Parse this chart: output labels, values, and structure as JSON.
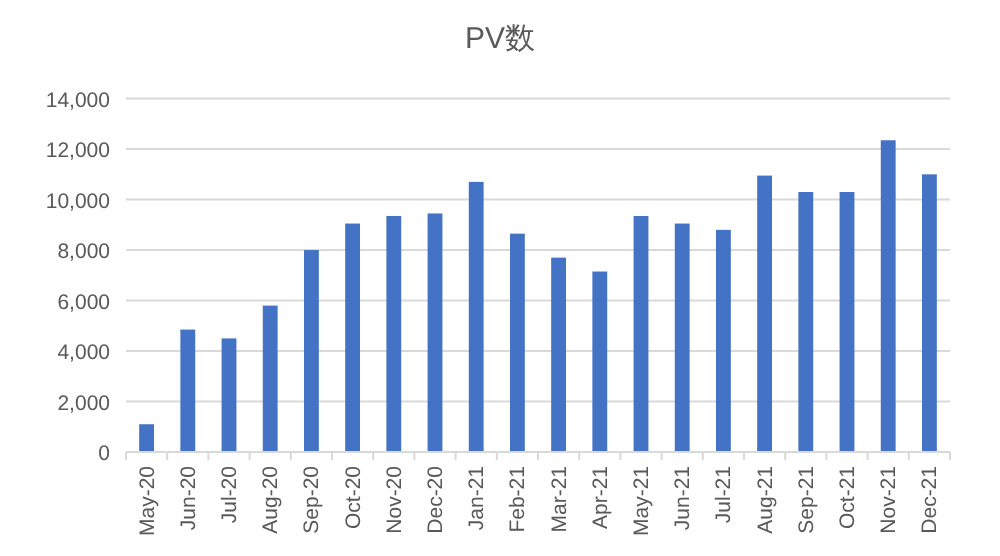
{
  "chart_data": {
    "type": "bar",
    "title": "PV数",
    "categories": [
      "May-20",
      "Jun-20",
      "Jul-20",
      "Aug-20",
      "Sep-20",
      "Oct-20",
      "Nov-20",
      "Dec-20",
      "Jan-21",
      "Feb-21",
      "Mar-21",
      "Apr-21",
      "May-21",
      "Jun-21",
      "Jul-21",
      "Aug-21",
      "Sep-21",
      "Oct-21",
      "Nov-21",
      "Dec-21"
    ],
    "values": [
      1100,
      4850,
      4500,
      5800,
      8000,
      9050,
      9350,
      9450,
      10700,
      8650,
      7700,
      7150,
      9350,
      9050,
      8800,
      10950,
      10300,
      10300,
      12350,
      11000
    ],
    "color": "#4472c4",
    "ylim": [
      0,
      14000
    ],
    "yticks": [
      0,
      {
        "value": 2000,
        "label": "2,000"
      },
      {
        "value": 4000,
        "label": "4,000"
      },
      {
        "value": 6000,
        "label": "6,000"
      },
      {
        "value": 8000,
        "label": "8,000"
      },
      {
        "value": 10000,
        "label": "10,000"
      },
      {
        "value": 12000,
        "label": "12,000"
      },
      {
        "value": 14000,
        "label": "14,000"
      }
    ],
    "grid": "y"
  }
}
